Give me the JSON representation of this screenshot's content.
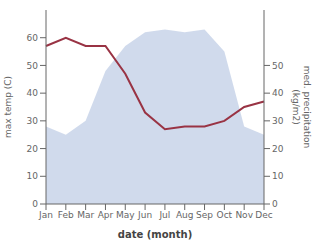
{
  "chart_data": {
    "type": "line",
    "xlabel": "date (month)",
    "ylabel": "max temp (C)",
    "y2label": "med. precipitation\n(kg/m2)",
    "categories": [
      "Jan",
      "Feb",
      "Mar",
      "Apr",
      "May",
      "Jun",
      "Jul",
      "Aug",
      "Sep",
      "Oct",
      "Nov",
      "Dec"
    ],
    "series": [
      {
        "type": "line",
        "color": "#993344",
        "axis": "y",
        "values": [
          57,
          60,
          57,
          57,
          47,
          33,
          27,
          28,
          28,
          30,
          35,
          37
        ]
      },
      {
        "type": "area",
        "color": "#aabbdd",
        "axis": "y2",
        "values": [
          28,
          25,
          30,
          48,
          57,
          62,
          63,
          62,
          63,
          55,
          28,
          25
        ]
      }
    ],
    "ylim": [
      0,
      70
    ],
    "yticks": [
      0,
      10,
      20,
      30,
      40,
      50,
      60
    ],
    "y2lim": [
      0,
      70
    ],
    "y2ticks": [
      0,
      10,
      20,
      30,
      40,
      50
    ],
    "grid": false
  }
}
